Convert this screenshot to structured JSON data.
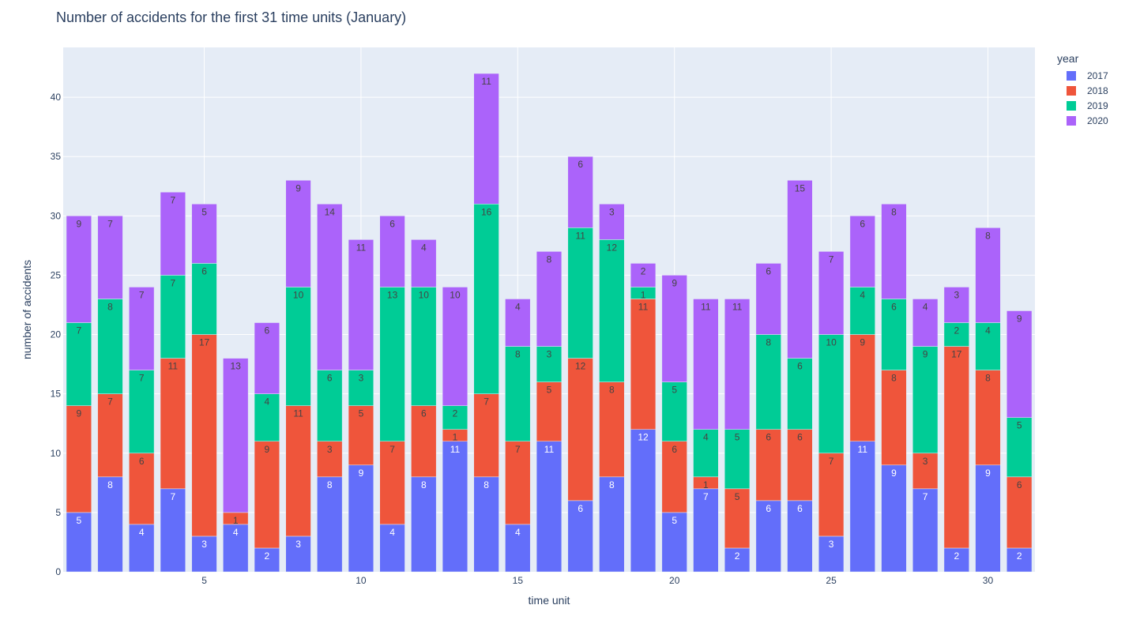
{
  "chart_data": {
    "type": "bar",
    "barmode": "stack",
    "title": "Number of accidents for the first 31 time units (January)",
    "xlabel": "time unit",
    "ylabel": "number of accidents",
    "legend_title": "year",
    "legend_position": "top-right",
    "grid": true,
    "x": [
      1,
      2,
      3,
      4,
      5,
      6,
      7,
      8,
      9,
      10,
      11,
      12,
      13,
      14,
      15,
      16,
      17,
      18,
      19,
      20,
      21,
      22,
      23,
      24,
      25,
      26,
      27,
      28,
      29,
      30,
      31
    ],
    "xticks": [
      5,
      10,
      15,
      20,
      25,
      30
    ],
    "yticks": [
      0,
      5,
      10,
      15,
      20,
      25,
      30,
      35,
      40
    ],
    "ylim": [
      0,
      44.2
    ],
    "xlim": [
      0.5,
      31.5
    ],
    "series": [
      {
        "name": "2017",
        "color": "#636efa",
        "label_color": "#ffffff",
        "values": [
          5,
          8,
          4,
          7,
          3,
          4,
          2,
          3,
          8,
          9,
          4,
          8,
          11,
          8,
          4,
          11,
          6,
          8,
          12,
          5,
          7,
          2,
          6,
          6,
          3,
          11,
          9,
          7,
          2,
          9,
          2
        ]
      },
      {
        "name": "2018",
        "color": "#ef553b",
        "label_color": "#444444",
        "values": [
          9,
          7,
          6,
          11,
          17,
          1,
          9,
          11,
          3,
          5,
          7,
          6,
          1,
          7,
          7,
          5,
          12,
          8,
          11,
          6,
          1,
          5,
          6,
          6,
          7,
          9,
          8,
          3,
          17,
          8,
          6
        ]
      },
      {
        "name": "2019",
        "color": "#00cc96",
        "label_color": "#444444",
        "values": [
          7,
          8,
          7,
          7,
          6,
          0,
          4,
          10,
          6,
          3,
          13,
          10,
          2,
          16,
          8,
          3,
          11,
          12,
          1,
          5,
          4,
          5,
          8,
          6,
          10,
          4,
          6,
          9,
          2,
          4,
          5
        ]
      },
      {
        "name": "2020",
        "color": "#ab63fa",
        "label_color": "#444444",
        "values": [
          9,
          7,
          7,
          7,
          5,
          13,
          6,
          9,
          14,
          11,
          6,
          4,
          10,
          11,
          4,
          8,
          6,
          3,
          2,
          9,
          11,
          11,
          6,
          15,
          7,
          6,
          8,
          4,
          3,
          8,
          9
        ]
      }
    ]
  }
}
